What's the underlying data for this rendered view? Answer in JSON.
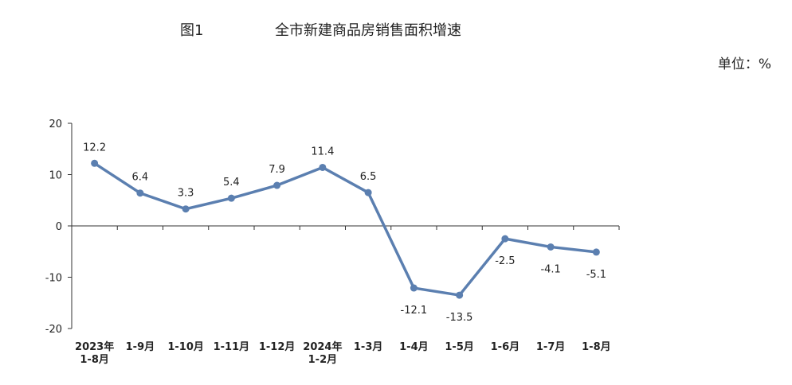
{
  "figure_label": "图1",
  "title": "全市新建商品房销售面积增速",
  "unit": "单位：%",
  "chart_data": {
    "type": "line",
    "title": "全市新建商品房销售面积增速",
    "categories": [
      [
        "2023年",
        "1-8月"
      ],
      [
        "1-9月"
      ],
      [
        "1-10月"
      ],
      [
        "1-11月"
      ],
      [
        "1-12月"
      ],
      [
        "2024年",
        "1-2月"
      ],
      [
        "1-3月"
      ],
      [
        "1-4月"
      ],
      [
        "1-5月"
      ],
      [
        "1-6月"
      ],
      [
        "1-7月"
      ],
      [
        "1-8月"
      ]
    ],
    "values": [
      12.2,
      6.4,
      3.3,
      5.4,
      7.9,
      11.4,
      6.5,
      -12.1,
      -13.5,
      -2.5,
      -4.1,
      -5.1
    ],
    "data_labels": [
      "12.2",
      "6.4",
      "3.3",
      "5.4",
      "7.9",
      "11.4",
      "6.5",
      "-12.1",
      "-13.5",
      "-2.5",
      "-4.1",
      "-5.1"
    ],
    "yticks": [
      20,
      10,
      0,
      -10,
      -20
    ],
    "ylim": [
      -20,
      20
    ],
    "line_color": "#5b7fb0",
    "grid": false
  }
}
